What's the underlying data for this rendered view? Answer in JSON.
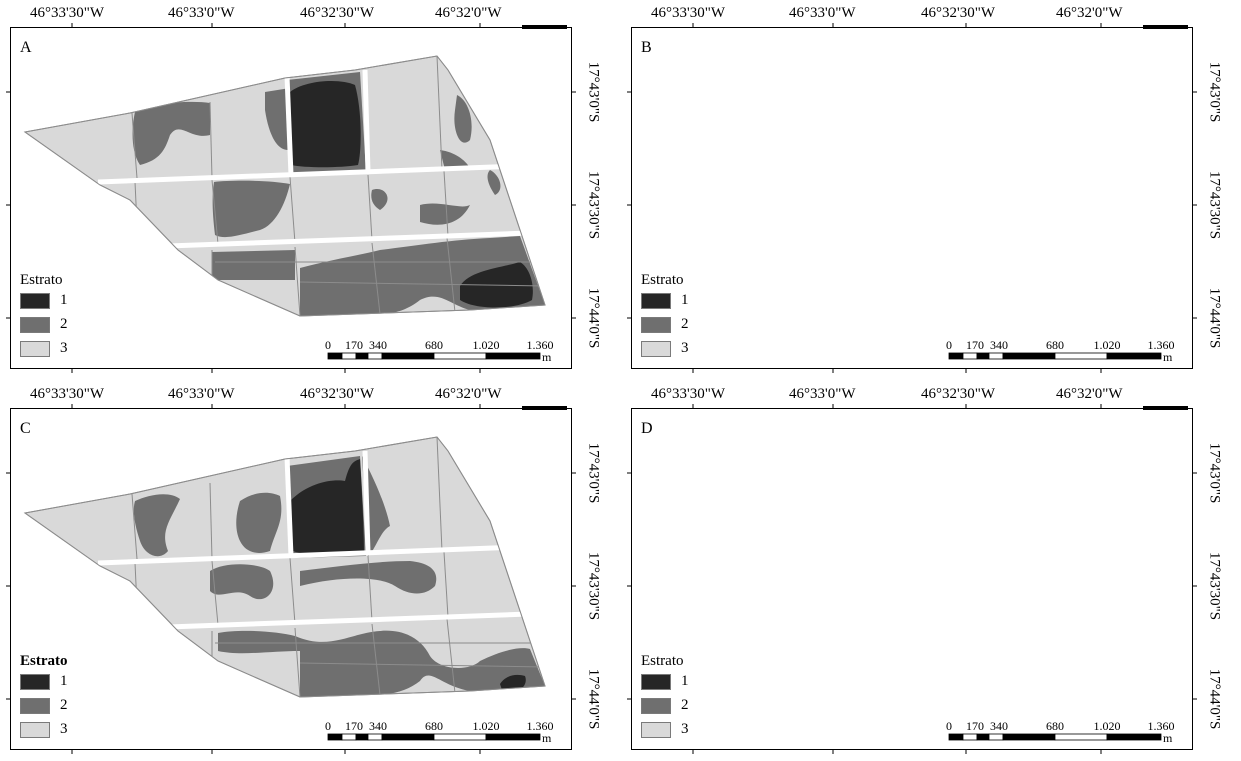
{
  "colors": {
    "stratum_1": "#262626",
    "stratum_2": "#6f6f6f",
    "stratum_3": "#d9d9d9",
    "boundary": "#8c8c8c",
    "frame": "#000000"
  },
  "longitude_labels": [
    "46°33'30\"W",
    "46°33'0\"W",
    "46°32'30\"W",
    "46°32'0\"W"
  ],
  "latitude_labels": [
    "17°43'0\"S",
    "17°43'30\"S",
    "17°44'0\"S"
  ],
  "legend": {
    "title": "Estrato",
    "items": [
      {
        "label": "1",
        "color_key": "stratum_1"
      },
      {
        "label": "2",
        "color_key": "stratum_2"
      },
      {
        "label": "3",
        "color_key": "stratum_3"
      }
    ]
  },
  "scale_bar": {
    "ticks": [
      "0",
      "170",
      "340",
      "680",
      "1.020",
      "1.360"
    ],
    "unit": "m"
  },
  "panels": [
    {
      "label": "A",
      "legend_title_bold": false
    },
    {
      "label": "B",
      "legend_title_bold": false
    },
    {
      "label": "C",
      "legend_title_bold": true
    },
    {
      "label": "D",
      "legend_title_bold": false
    }
  ]
}
